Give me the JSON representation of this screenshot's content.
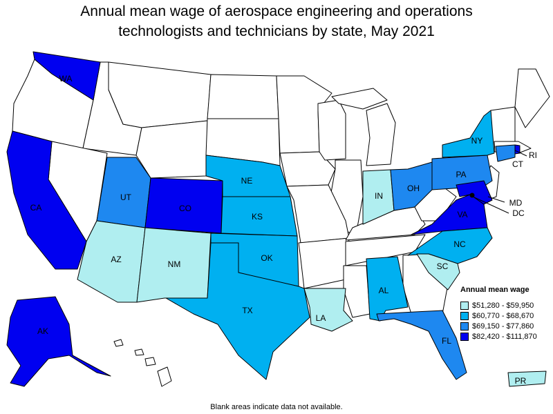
{
  "title": {
    "line1": "Annual mean wage of aerospace engineering and operations",
    "line2": "technologists and technicians by state, May 2021"
  },
  "colors": {
    "bin1": "#b0eef0",
    "bin2": "#00b0f0",
    "bin3": "#1e88f0",
    "bin4": "#0000f0",
    "no_data": "#ffffff"
  },
  "legend": {
    "title": "Annual mean wage",
    "items": [
      {
        "label": "$51,280 - $59,950",
        "color": "#b0eef0"
      },
      {
        "label": "$60,770 - $68,670",
        "color": "#00b0f0"
      },
      {
        "label": "$69,150 - $77,860",
        "color": "#1e88f0"
      },
      {
        "label": "$82,420 - $111,870",
        "color": "#0000f0"
      }
    ]
  },
  "state_labels": {
    "WA": "WA",
    "CA": "CA",
    "AK": "AK",
    "UT": "UT",
    "CO": "CO",
    "AZ": "AZ",
    "NM": "NM",
    "NE": "NE",
    "KS": "KS",
    "OK": "OK",
    "TX": "TX",
    "LA": "LA",
    "IN": "IN",
    "OH": "OH",
    "PA": "PA",
    "NY": "NY",
    "CT": "CT",
    "RI": "RI",
    "MD": "MD",
    "DC": "DC",
    "VA": "VA",
    "NC": "NC",
    "SC": "SC",
    "AL": "AL",
    "FL": "FL",
    "PR": "PR"
  },
  "footnote": "Blank areas indicate data not available."
}
